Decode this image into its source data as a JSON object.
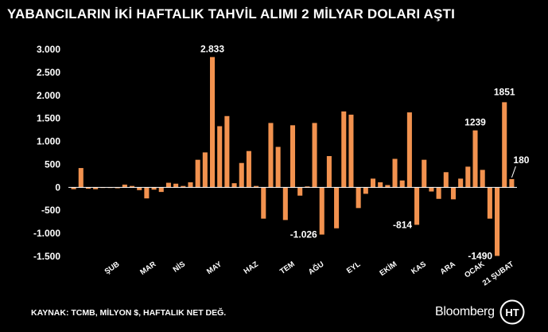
{
  "title": "YABANCILARIN İKİ HAFTALIK TAHVİL ALIMI 2 MİLYAR DOLARI AŞTI",
  "source_note": "KAYNAK: TCMB, MİLYON $, HAFTALIK NET DEĞ.",
  "brand": "Bloomberg",
  "brand_logo_text": "HT",
  "colors": {
    "background": "#000000",
    "bar": "#f2924f",
    "text": "#ffffff",
    "axis": "#ffffff"
  },
  "chart_data": {
    "type": "bar",
    "title": "YABANCILARIN İKİ HAFTALIK TAHVİL ALIMI 2 MİLYAR DOLARI AŞTI",
    "xlabel": "",
    "ylabel": "",
    "ylim": [
      -1500,
      3000
    ],
    "yticks": [
      3000,
      2500,
      2000,
      1500,
      1000,
      500,
      0,
      -500,
      -1000,
      -1500
    ],
    "ytick_labels": [
      "3.000",
      "2.500",
      "2.000",
      "1.500",
      "1.000",
      "500",
      "0",
      "-500",
      "-1.000",
      "-1.500"
    ],
    "grid": false,
    "values": [
      -40,
      420,
      -30,
      -40,
      -10,
      -10,
      -20,
      60,
      30,
      -60,
      -240,
      -50,
      -100,
      100,
      80,
      30,
      110,
      600,
      760,
      2833,
      1330,
      1550,
      90,
      530,
      790,
      30,
      -680,
      1400,
      880,
      -710,
      1350,
      -180,
      20,
      1400,
      -1026,
      680,
      -890,
      1650,
      1580,
      -450,
      -140,
      190,
      110,
      50,
      620,
      150,
      1630,
      -814,
      600,
      -90,
      -250,
      330,
      -260,
      190,
      450,
      1239,
      380,
      -680,
      -1490,
      1851,
      180
    ],
    "x_tick_labels": [
      {
        "label": "ŞUB",
        "index": 6
      },
      {
        "label": "MAR",
        "index": 11
      },
      {
        "label": "NİS",
        "index": 15
      },
      {
        "label": "MAY",
        "index": 20
      },
      {
        "label": "HAZ",
        "index": 25
      },
      {
        "label": "TEM",
        "index": 30
      },
      {
        "label": "AĞU",
        "index": 34
      },
      {
        "label": "EYL",
        "index": 39
      },
      {
        "label": "EKİM",
        "index": 44
      },
      {
        "label": "KAS",
        "index": 48
      },
      {
        "label": "ARA",
        "index": 52
      },
      {
        "label": "OCAK",
        "index": 56
      },
      {
        "label": "21 ŞUBAT",
        "index": 60
      }
    ],
    "annotations": [
      {
        "text": "2.833",
        "index": 19
      },
      {
        "text": "-1.026",
        "index": 34
      },
      {
        "text": "-814",
        "index": 47
      },
      {
        "text": "1239",
        "index": 55
      },
      {
        "text": "-1490",
        "index": 58
      },
      {
        "text": "1851",
        "index": 59
      },
      {
        "text": "180",
        "index": 60
      }
    ]
  }
}
